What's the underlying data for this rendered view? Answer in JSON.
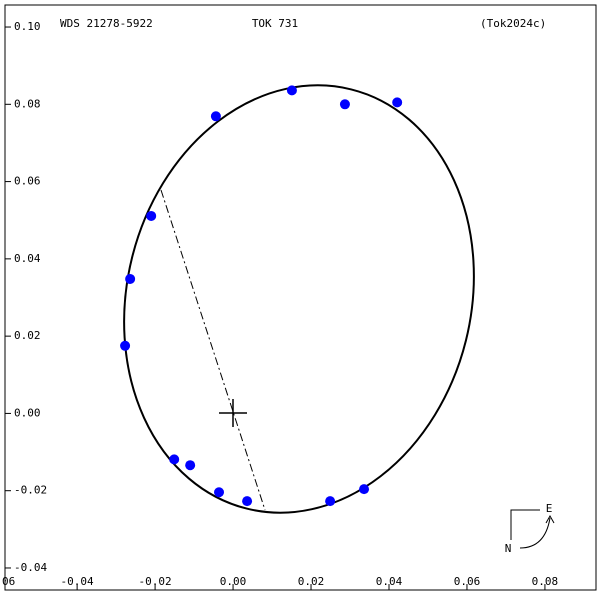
{
  "chart_data": {
    "type": "scatter",
    "title": "TOK 731",
    "left_label": "WDS 21278-5922",
    "right_label": "(Tok2024c)",
    "compass": {
      "east": "E",
      "north": "N"
    },
    "series": [
      {
        "color": "#0000ff",
        "x": [
          0.0151,
          0.0287,
          0.0421,
          -0.0044,
          -0.021,
          -0.0264,
          -0.0277,
          -0.0151,
          -0.011,
          -0.0036,
          0.0036,
          0.0249,
          0.0336
        ],
        "values": [
          0.0836,
          0.08,
          0.0805,
          0.0769,
          0.0511,
          0.0348,
          0.0175,
          -0.0119,
          -0.0134,
          -0.0204,
          -0.0227,
          -0.0227,
          -0.0196
        ]
      }
    ],
    "xlim": [
      -0.0585,
      0.0931
    ],
    "ylim": [
      -0.0457,
      0.1057
    ],
    "xticks": [
      {
        "value": -0.06,
        "label": "06"
      },
      -0.04,
      -0.02,
      {
        "value": 0,
        "label": "0.00"
      },
      0.02,
      0.04,
      0.06,
      0.08
    ],
    "yticks": [
      {
        "value": 0.1,
        "label": "0.10"
      },
      0.08,
      0.06,
      0.04,
      0.02,
      {
        "value": 0,
        "label": "0.00"
      },
      -0.02,
      -0.04
    ]
  }
}
